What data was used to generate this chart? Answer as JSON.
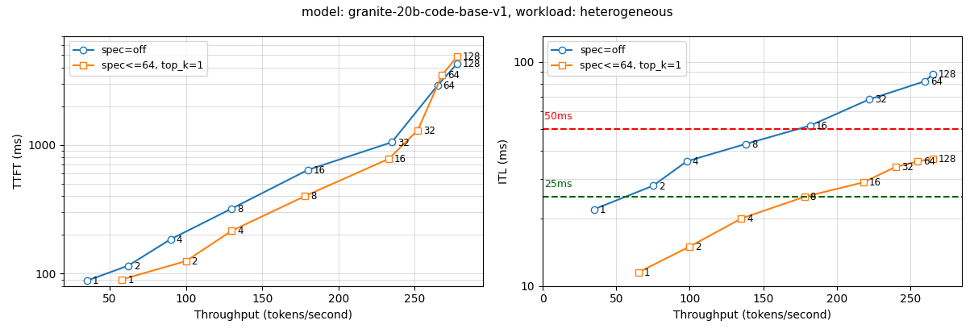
{
  "title": "model: granite-20b-code-base-v1, workload: heterogeneous",
  "title_fontsize": 11,
  "ttft": {
    "blue_x": [
      35,
      62,
      90,
      130,
      180,
      235,
      265,
      278
    ],
    "blue_y": [
      88,
      115,
      185,
      320,
      640,
      1050,
      2900,
      4300
    ],
    "blue_labels": [
      "1",
      "2",
      "4",
      "8",
      "16",
      "32",
      "64",
      "128"
    ],
    "orange_x": [
      58,
      100,
      130,
      178,
      233,
      252,
      268,
      278
    ],
    "orange_y": [
      90,
      125,
      215,
      400,
      780,
      1300,
      3500,
      4900
    ],
    "orange_labels": [
      "1",
      "2",
      "4",
      "8",
      "16",
      "32",
      "64",
      "128"
    ],
    "ylabel": "TTFT (ms)",
    "xlabel": "Throughput (tokens/second)",
    "xlim": [
      20,
      295
    ],
    "ylim_log": [
      80,
      7000
    ]
  },
  "itl": {
    "blue_x": [
      35,
      75,
      98,
      138,
      182,
      222,
      260,
      265
    ],
    "blue_y": [
      22,
      28,
      36,
      43,
      52,
      68,
      82,
      88
    ],
    "blue_labels": [
      "1",
      "2",
      "4",
      "8",
      "16",
      "32",
      "64",
      "128"
    ],
    "orange_x": [
      65,
      100,
      135,
      178,
      218,
      240,
      255,
      265
    ],
    "orange_y": [
      11.5,
      15,
      20,
      25,
      29,
      34,
      36,
      37
    ],
    "orange_labels": [
      "1",
      "2",
      "4",
      "8",
      "16",
      "32",
      "64",
      "128"
    ],
    "ylabel": "ITL (ms)",
    "xlabel": "Throughput (tokens/second)",
    "xlim": [
      0,
      285
    ],
    "ylim_log": [
      10,
      130
    ],
    "hline_red": 50,
    "hline_green": 25,
    "hline_red_label": "50ms",
    "hline_green_label": "25ms"
  },
  "blue_color": "#1f77b4",
  "orange_color": "#ff7f0e",
  "legend_blue": "spec=off",
  "legend_orange": "spec<=64, top_k=1"
}
